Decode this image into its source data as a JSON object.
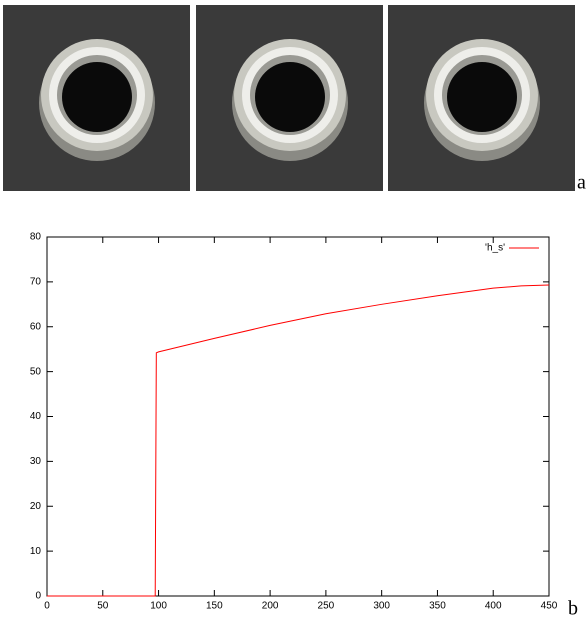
{
  "panel_labels": [
    "a",
    "b"
  ],
  "chart_data": {
    "type": "line",
    "x": [
      0,
      97,
      98,
      100,
      150,
      200,
      250,
      300,
      350,
      400,
      425,
      450
    ],
    "series": [
      {
        "name": "'h_s'",
        "color": "#ff0000",
        "values": [
          0,
          0,
          54.2,
          54.4,
          57.4,
          60.3,
          62.9,
          65.0,
          66.9,
          68.6,
          69.1,
          69.3
        ]
      }
    ],
    "xlim": [
      0,
      450
    ],
    "xticks": [
      0,
      50,
      100,
      150,
      200,
      250,
      300,
      350,
      400,
      450
    ],
    "ylim": [
      0,
      80
    ],
    "yticks": [
      0,
      10,
      20,
      30,
      40,
      50,
      60,
      70,
      80
    ],
    "legend": "top-right"
  }
}
